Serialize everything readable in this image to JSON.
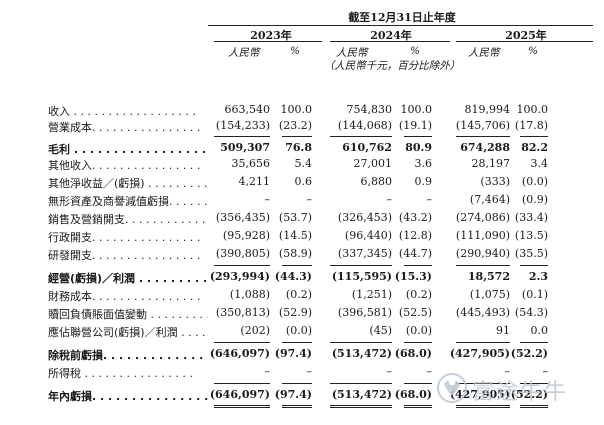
{
  "header": {
    "period": "截至12月31日止年度",
    "years": [
      "2023年",
      "2024年",
      "2025年"
    ],
    "currency": "人民幣",
    "pct": "%",
    "note": "（人民幣千元，百分比除外）"
  },
  "rows": [
    {
      "label": "收入 . . . . . . . . . . . . . . . . . .",
      "bold": false,
      "v": [
        "663,540",
        "100.0",
        "754,830",
        "100.0",
        "819,994",
        "100.0"
      ]
    },
    {
      "label": "營業成本. . . . . . . . . . . . . . . .",
      "bold": false,
      "v": [
        "(154,233)",
        "(23.2)",
        "(144,068)",
        "(19.1)",
        "(145,706)",
        "(17.8)"
      ]
    },
    {
      "label": "毛利 . . . . . . . . . . . . . . . . . .",
      "bold": true,
      "v": [
        "509,307",
        "76.8",
        "610,762",
        "80.9",
        "674,288",
        "82.2"
      ]
    },
    {
      "label": "其他收入. . . . . . . . . . . . . . . .",
      "bold": false,
      "v": [
        "35,656",
        "5.4",
        "27,001",
        "3.6",
        "28,197",
        "3.4"
      ]
    },
    {
      "label": "其他淨收益／(虧損) . . . . . . . . .",
      "bold": false,
      "v": [
        "4,211",
        "0.6",
        "6,880",
        "0.9",
        "(333)",
        "(0.0)"
      ]
    },
    {
      "label": "無形資產及商譽減值虧損. . . . . . .",
      "bold": false,
      "v": [
        "–",
        "–",
        "–",
        "–",
        "(7,464)",
        "(0.9)"
      ]
    },
    {
      "label": "銷售及營銷開支. . . . . . . . . . . .",
      "bold": false,
      "v": [
        "(356,435)",
        "(53.7)",
        "(326,453)",
        "(43.2)",
        "(274,086)",
        "(33.4)"
      ]
    },
    {
      "label": "行政開支. . . . . . . . . . . . . . . .",
      "bold": false,
      "v": [
        "(95,928)",
        "(14.5)",
        "(96,440)",
        "(12.8)",
        "(111,090)",
        "(13.5)"
      ]
    },
    {
      "label": "研發開支. . . . . . . . . . . . . . . .",
      "bold": false,
      "v": [
        "(390,805)",
        "(58.9)",
        "(337,345)",
        "(44.7)",
        "(290,940)",
        "(35.5)"
      ]
    },
    {
      "label": "經營(虧損)／利潤 . . . . . . . . . .",
      "bold": true,
      "v": [
        "(293,994)",
        "(44.3)",
        "(115,595)",
        "(15.3)",
        "18,572",
        "2.3"
      ]
    },
    {
      "label": "財務成本. . . . . . . . . . . . . . . .",
      "bold": false,
      "v": [
        "(1,088)",
        "(0.2)",
        "(1,251)",
        "(0.2)",
        "(1,075)",
        "(0.1)"
      ]
    },
    {
      "label": "贖回負債賬面值變動 . . . . . . . . .",
      "bold": false,
      "v": [
        "(350,813)",
        "(52.9)",
        "(396,581)",
        "(52.5)",
        "(445,493)",
        "(54.3)"
      ]
    },
    {
      "label": "應佔聯營公司(虧損)／利潤 . . . . .",
      "bold": false,
      "v": [
        "(202)",
        "(0.0)",
        "(45)",
        "(0.0)",
        "91",
        "0.0"
      ]
    },
    {
      "label": "除稅前虧損. . . . . . . . . . . . . .",
      "bold": true,
      "v": [
        "(646,097)",
        "(97.4)",
        "(513,472)",
        "(68.0)",
        "(427,905)",
        "(52.2)"
      ]
    },
    {
      "label": "所得稅 . . . . . . . . . . . . . . . .",
      "bold": false,
      "v": [
        "–",
        "–",
        "–",
        "–",
        "–",
        "–"
      ]
    },
    {
      "label": "年內虧損. . . . . . . . . . . . . . . .",
      "bold": true,
      "v": [
        "(646,097)",
        "(97.4)",
        "(513,472)",
        "(68.0)",
        "(427,905)",
        "(52.2)"
      ]
    }
  ],
  "watermark": {
    "text": "富途牛牛",
    "logo": "bull-logo-icon"
  }
}
